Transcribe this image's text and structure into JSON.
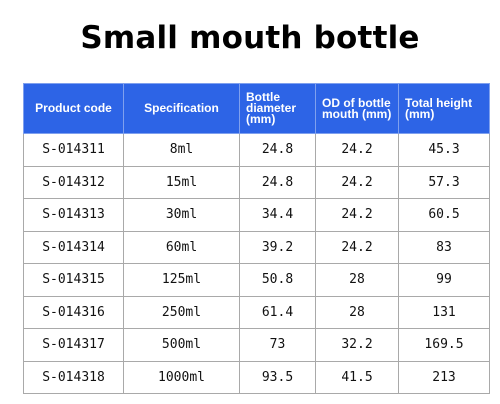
{
  "title": "Small mouth bottle",
  "table": {
    "headers": [
      "Product code",
      "Specification",
      "Bottle diameter (mm)",
      "OD of bottle mouth (mm)",
      "Total height (mm)"
    ],
    "rows": [
      [
        "S-014311",
        "8ml",
        "24.8",
        "24.2",
        "45.3"
      ],
      [
        "S-014312",
        "15ml",
        "24.8",
        "24.2",
        "57.3"
      ],
      [
        "S-014313",
        "30ml",
        "34.4",
        "24.2",
        "60.5"
      ],
      [
        "S-014314",
        "60ml",
        "39.2",
        "24.2",
        "83"
      ],
      [
        "S-014315",
        "125ml",
        "50.8",
        "28",
        "99"
      ],
      [
        "S-014316",
        "250ml",
        "61.4",
        "28",
        "131"
      ],
      [
        "S-014317",
        "500ml",
        "73",
        "32.2",
        "169.5"
      ],
      [
        "S-014318",
        "1000ml",
        "93.5",
        "41.5",
        "213"
      ]
    ]
  }
}
